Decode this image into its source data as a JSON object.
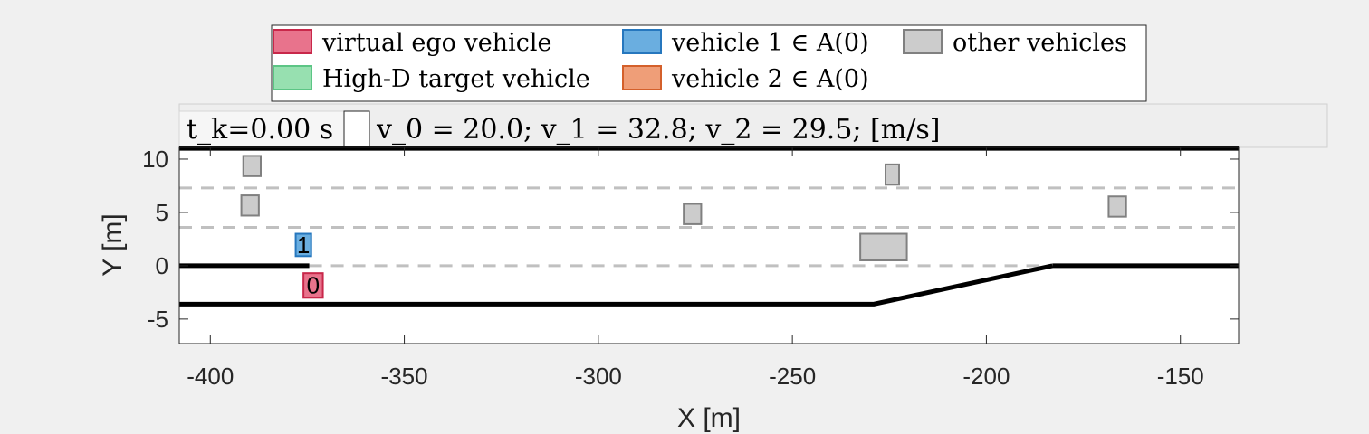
{
  "legend": {
    "items": [
      {
        "label": "virtual ego vehicle",
        "fill": "#e8738c",
        "stroke": "#c8284a"
      },
      {
        "label": "High-D target vehicle",
        "fill": "#97e0b0",
        "stroke": "#5cc585"
      },
      {
        "label": "vehicle 1 ∈ A(0)",
        "fill": "#6aaee0",
        "stroke": "#2677be"
      },
      {
        "label": "vehicle 2 ∈ A(0)",
        "fill": "#ef9e78",
        "stroke": "#d4602b"
      },
      {
        "label": "other vehicles",
        "fill": "#cccccc",
        "stroke": "#808080"
      }
    ]
  },
  "header": {
    "time_text": "t_k=0.00 s",
    "speed_text": "v_0 = 20.0; v_1 = 32.8; v_2 = 29.5; [m/s]"
  },
  "axes": {
    "xlabel": "X [m]",
    "ylabel": "Y [m]",
    "xlim": [
      -408,
      -135
    ],
    "ylim": [
      -7.3,
      11.1
    ],
    "xticks": [
      -400,
      -350,
      -300,
      -250,
      -200,
      -150
    ],
    "yticks": [
      -5,
      0,
      5,
      10
    ]
  },
  "road": {
    "solid_lines": [
      [
        [
          -408,
          11.0
        ],
        [
          -135,
          11.0
        ]
      ],
      [
        [
          -408,
          0.0
        ],
        [
          -374.5,
          0.0
        ]
      ],
      [
        [
          -183,
          0.0
        ],
        [
          -135,
          0.0
        ]
      ],
      [
        [
          -408,
          -3.6
        ],
        [
          -229,
          -3.6
        ],
        [
          -183,
          0.0
        ]
      ]
    ],
    "dashed_lines": [
      [
        [
          -408,
          7.3
        ],
        [
          -135,
          7.3
        ]
      ],
      [
        [
          -408,
          3.6
        ],
        [
          -135,
          3.6
        ]
      ],
      [
        [
          -374.5,
          0.0
        ],
        [
          -183,
          0.0
        ]
      ]
    ]
  },
  "vehicles": [
    {
      "kind": "ego",
      "label": "0",
      "x_range": [
        -376,
        -371
      ],
      "y_range": [
        -3.0,
        -0.7
      ],
      "fill": "#e8738c",
      "stroke": "#c8284a"
    },
    {
      "kind": "vehicle-1",
      "label": "1",
      "x_range": [
        -378,
        -374
      ],
      "y_range": [
        0.9,
        3.0
      ],
      "fill": "#6aaee0",
      "stroke": "#2677be"
    },
    {
      "kind": "other",
      "label": "",
      "x_range": [
        -391.5,
        -387
      ],
      "y_range": [
        8.4,
        10.3
      ],
      "fill": "#cccccc",
      "stroke": "#808080"
    },
    {
      "kind": "other",
      "label": "",
      "x_range": [
        -392,
        -387.5
      ],
      "y_range": [
        4.7,
        6.6
      ],
      "fill": "#cccccc",
      "stroke": "#808080"
    },
    {
      "kind": "other",
      "label": "",
      "x_range": [
        -278,
        -273.5
      ],
      "y_range": [
        3.9,
        5.8
      ],
      "fill": "#cccccc",
      "stroke": "#808080"
    },
    {
      "kind": "other",
      "label": "",
      "x_range": [
        -232.5,
        -220.5
      ],
      "y_range": [
        0.5,
        3.0
      ],
      "fill": "#cccccc",
      "stroke": "#808080"
    },
    {
      "kind": "other",
      "label": "",
      "x_range": [
        -226,
        -222.5
      ],
      "y_range": [
        7.6,
        9.5
      ],
      "fill": "#cccccc",
      "stroke": "#808080"
    },
    {
      "kind": "other",
      "label": "",
      "x_range": [
        -168.5,
        -164
      ],
      "y_range": [
        4.6,
        6.5
      ],
      "fill": "#cccccc",
      "stroke": "#808080"
    }
  ]
}
